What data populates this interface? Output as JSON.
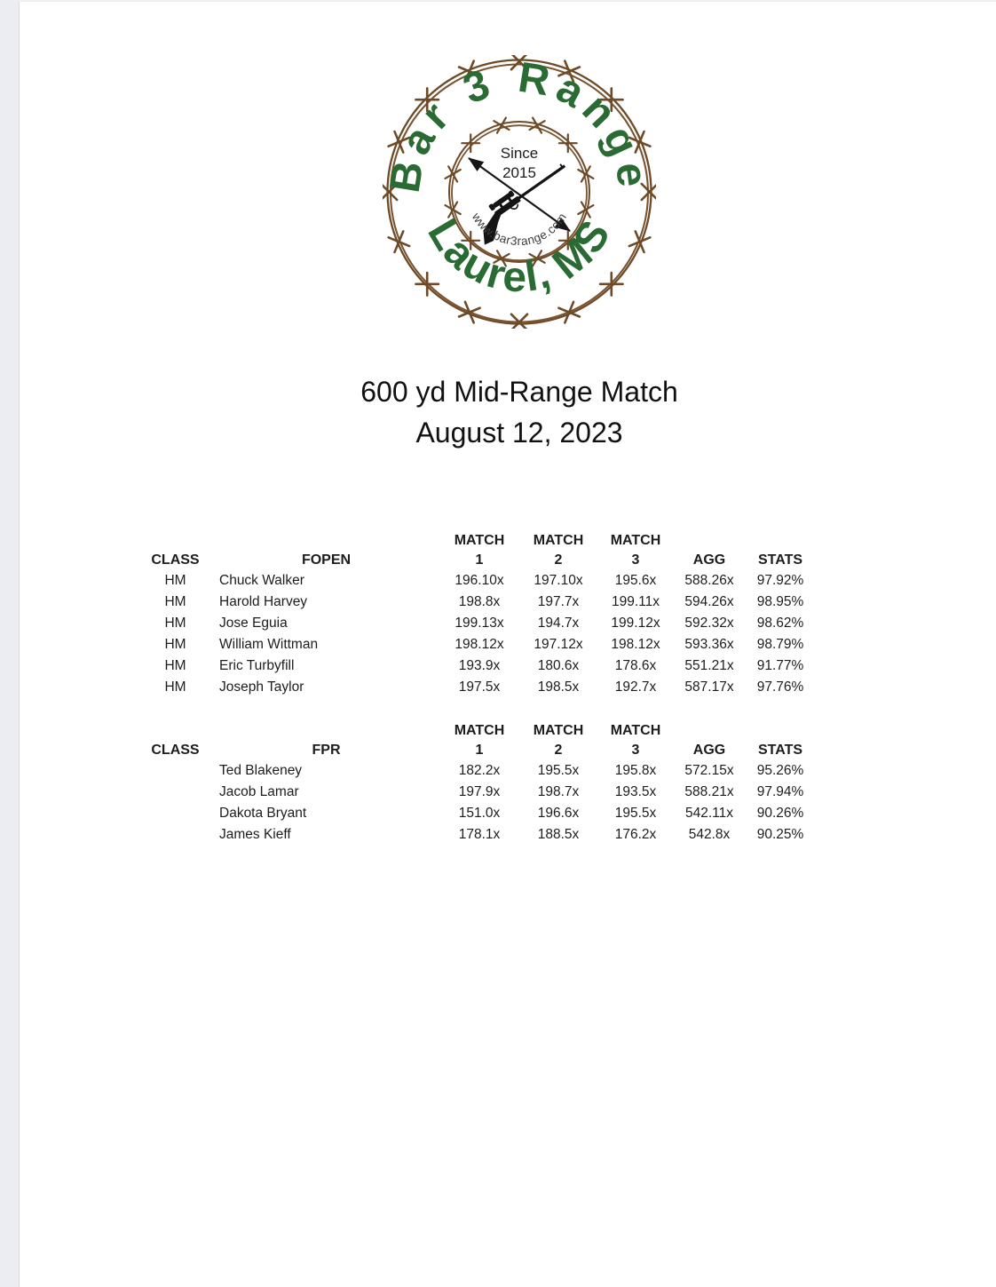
{
  "app": {
    "accent_green": "#2a6b33",
    "wire_brown": "#6e4a27",
    "page_background": "#ffffff",
    "gutter_color": "#ecedf2"
  },
  "logo": {
    "arc_top_text": "Bar 3 Range",
    "arc_bottom_text": "Laurel, MS",
    "since_line1": "Since",
    "since_line2": "2015",
    "website": "www.bar3range.com"
  },
  "title": {
    "line1": "600 yd Mid-Range Match",
    "line2": "August 12, 2023"
  },
  "tables": [
    {
      "division": "FOPEN",
      "headers": {
        "class": "CLASS",
        "match": "MATCH",
        "col1": "1",
        "col2": "2",
        "col3": "3",
        "agg": "AGG",
        "stats": "STATS"
      },
      "rows": [
        {
          "class": "HM",
          "name": "Chuck Walker",
          "m1": "196.10x",
          "m2": "197.10x",
          "m3": "195.6x",
          "agg": "588.26x",
          "stats": "97.92%"
        },
        {
          "class": "HM",
          "name": "Harold Harvey",
          "m1": "198.8x",
          "m2": "197.7x",
          "m3": "199.11x",
          "agg": "594.26x",
          "stats": "98.95%"
        },
        {
          "class": "HM",
          "name": "Jose Eguia",
          "m1": "199.13x",
          "m2": "194.7x",
          "m3": "199.12x",
          "agg": "592.32x",
          "stats": "98.62%"
        },
        {
          "class": "HM",
          "name": "William Wittman",
          "m1": "198.12x",
          "m2": "197.12x",
          "m3": "198.12x",
          "agg": "593.36x",
          "stats": "98.79%"
        },
        {
          "class": "HM",
          "name": "Eric Turbyfill",
          "m1": "193.9x",
          "m2": "180.6x",
          "m3": "178.6x",
          "agg": "551.21x",
          "stats": "91.77%"
        },
        {
          "class": "HM",
          "name": "Joseph Taylor",
          "m1": "197.5x",
          "m2": "198.5x",
          "m3": "192.7x",
          "agg": "587.17x",
          "stats": "97.76%"
        }
      ]
    },
    {
      "division": "FPR",
      "headers": {
        "class": "CLASS",
        "match": "MATCH",
        "col1": "1",
        "col2": "2",
        "col3": "3",
        "agg": "AGG",
        "stats": "STATS"
      },
      "rows": [
        {
          "class": "",
          "name": "Ted Blakeney",
          "m1": "182.2x",
          "m2": "195.5x",
          "m3": "195.8x",
          "agg": "572.15x",
          "stats": "95.26%"
        },
        {
          "class": "",
          "name": "Jacob Lamar",
          "m1": "197.9x",
          "m2": "198.7x",
          "m3": "193.5x",
          "agg": "588.21x",
          "stats": "97.94%"
        },
        {
          "class": "",
          "name": "Dakota Bryant",
          "m1": "151.0x",
          "m2": "196.6x",
          "m3": "195.5x",
          "agg": "542.11x",
          "stats": "90.26%"
        },
        {
          "class": "",
          "name": "James Kieff",
          "m1": "178.1x",
          "m2": "188.5x",
          "m3": "176.2x",
          "agg": "542.8x",
          "stats": "90.25%"
        }
      ]
    }
  ]
}
